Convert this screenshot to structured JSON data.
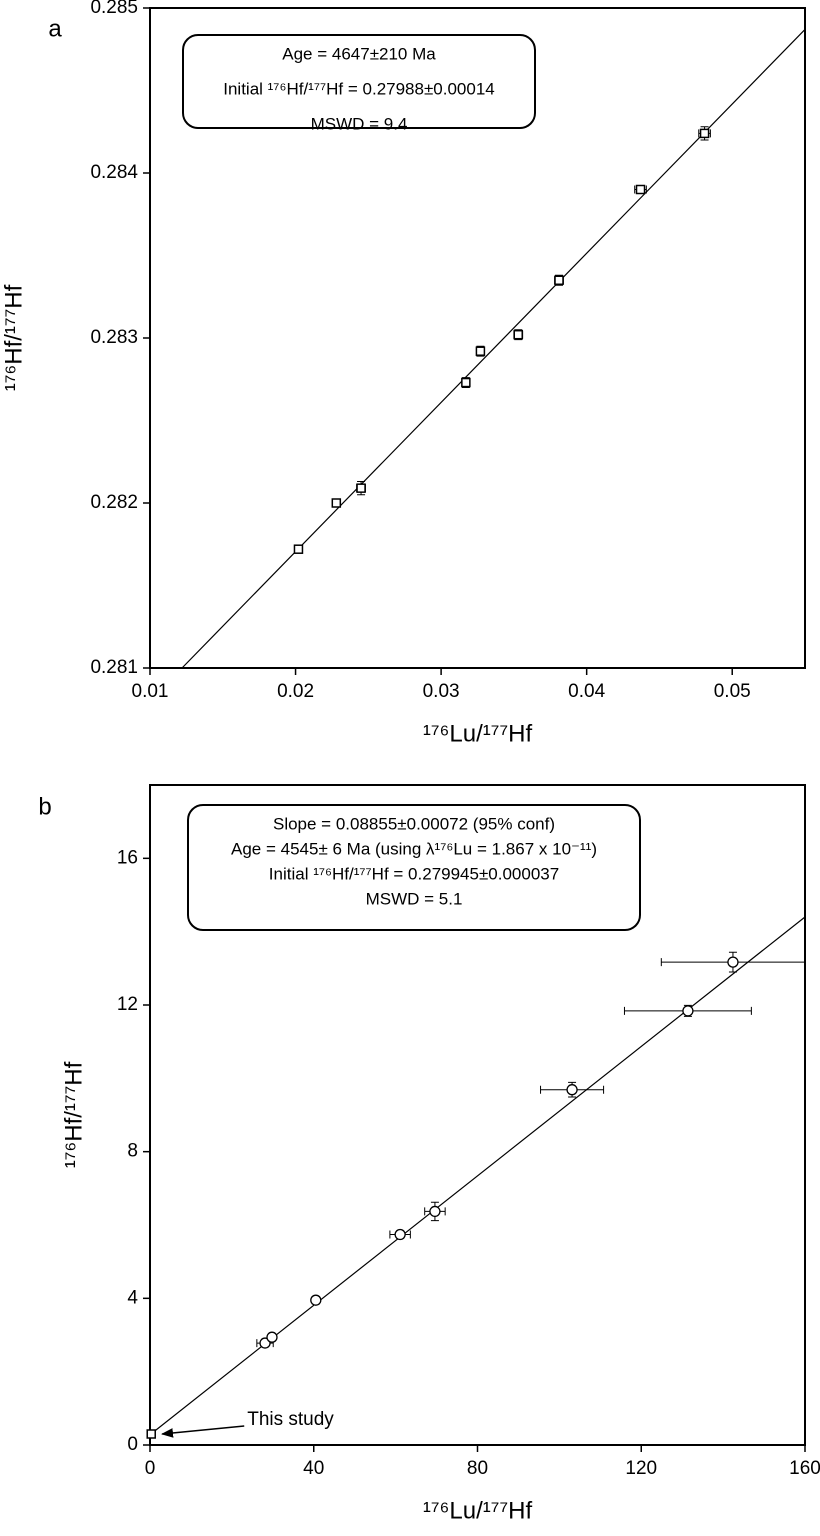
{
  "chart_data": [
    {
      "type": "scatter",
      "label": "a",
      "annotation": [
        "Age = 4647±210 Ma",
        "Initial ¹⁷⁶Hf/¹⁷⁷Hf = 0.27988±0.00014",
        "MSWD = 9.4"
      ],
      "xlabel": "¹⁷⁶Lu/¹⁷⁷Hf",
      "ylabel": "¹⁷⁶Hf/¹⁷⁷Hf",
      "xlim": [
        0.01,
        0.055
      ],
      "ylim": [
        0.281,
        0.285
      ],
      "xticks": [
        0.01,
        0.02,
        0.03,
        0.04,
        0.05
      ],
      "yticks": [
        0.281,
        0.282,
        0.283,
        0.284,
        0.285
      ],
      "series": [
        {
          "marker": "square",
          "color": "#000000",
          "x": [
            0.0202,
            0.0228,
            0.0245,
            0.0317,
            0.0327,
            0.0353,
            0.0381,
            0.0437,
            0.0481
          ],
          "y": [
            0.28172,
            0.282,
            0.28209,
            0.28273,
            0.28292,
            0.28302,
            0.28335,
            0.2839,
            0.28424
          ],
          "xerr": [
            0.0002,
            0.0002,
            0.0003,
            0.0002,
            0.0002,
            0.0003,
            0.0003,
            0.0004,
            0.0004
          ],
          "yerr": [
            2e-05,
            2e-05,
            4e-05,
            3e-05,
            3e-05,
            3e-05,
            3e-05,
            2e-05,
            4e-05
          ]
        }
      ],
      "fit": {
        "x": [
          0.0122,
          0.055
        ],
        "y": [
          0.281,
          0.28487
        ]
      }
    },
    {
      "type": "scatter",
      "label": "b",
      "annotation": [
        "Slope = 0.08855±0.00072 (95% conf)",
        "Age = 4545± 6 Ma (using λ¹⁷⁶Lu = 1.867 x 10⁻¹¹)",
        "Initial ¹⁷⁶Hf/¹⁷⁷Hf = 0.279945±0.000037",
        "MSWD = 5.1"
      ],
      "callout": "This study",
      "xlabel": "¹⁷⁶Lu/¹⁷⁷Hf",
      "ylabel": "¹⁷⁶Hf/¹⁷⁷Hf",
      "xlim": [
        0,
        160
      ],
      "ylim": [
        0,
        18
      ],
      "xticks": [
        0,
        40,
        80,
        120,
        160
      ],
      "yticks": [
        0,
        4,
        8,
        12,
        16
      ],
      "series": [
        {
          "marker": "square",
          "color": "#000000",
          "x": [
            0.3
          ],
          "y": [
            0.3
          ],
          "xerr": [
            0
          ],
          "yerr": [
            0
          ]
        },
        {
          "marker": "circle",
          "color": "#000000",
          "x": [
            28.1,
            29.8,
            40.5,
            61.1,
            69.6,
            103.1,
            131.4,
            142.4
          ],
          "y": [
            2.78,
            2.94,
            3.95,
            5.74,
            6.37,
            9.69,
            11.84,
            13.17
          ],
          "xerr": [
            2.0,
            0.8,
            0.8,
            2.5,
            2.5,
            7.7,
            15.5,
            17.5
          ],
          "yerr": [
            0.1,
            0.1,
            0.1,
            0.1,
            0.25,
            0.2,
            0.15,
            0.27
          ]
        }
      ],
      "fit": {
        "x": [
          0,
          160
        ],
        "y": [
          0.28,
          14.4
        ]
      }
    }
  ]
}
